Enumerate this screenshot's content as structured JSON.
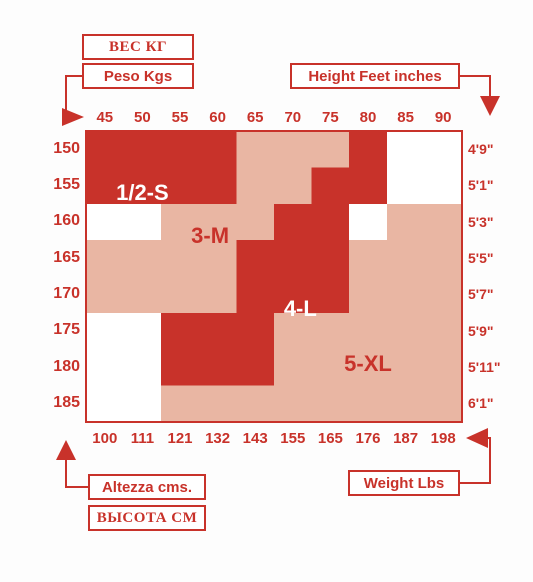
{
  "chart_data": {
    "type": "heatmap",
    "weight_kg_ticks": [
      "45",
      "50",
      "55",
      "60",
      "65",
      "70",
      "75",
      "80",
      "85",
      "90"
    ],
    "weight_lbs_ticks": [
      "100",
      "111",
      "121",
      "132",
      "143",
      "155",
      "165",
      "176",
      "187",
      "198"
    ],
    "height_cm_ticks": [
      "150",
      "155",
      "160",
      "165",
      "170",
      "175",
      "180",
      "185"
    ],
    "height_ftin_ticks": [
      "4'9\"",
      "5'1\"",
      "5'3\"",
      "5'5\"",
      "5'7\"",
      "5'9\"",
      "5'11\"",
      "6'1\""
    ],
    "x_range_kg": [
      42.5,
      92.5
    ],
    "y_range_cm": [
      147.5,
      187.5
    ],
    "regions": [
      {
        "label": "1/2-S",
        "color": "#c8322a",
        "label_color": "#ffffff",
        "cells": [
          [
            42.5,
            62.5,
            147.5,
            157.5
          ]
        ]
      },
      {
        "label": "3-M",
        "color": "#e9b6a3",
        "label_color": "#c8322a",
        "cells": [
          [
            62.5,
            77.5,
            147.5,
            152.5
          ],
          [
            62.5,
            72.5,
            152.5,
            157.5
          ],
          [
            52.5,
            67.5,
            157.5,
            162.5
          ],
          [
            42.5,
            67.5,
            162.5,
            167.5
          ],
          [
            42.5,
            62.5,
            167.5,
            172.5
          ]
        ]
      },
      {
        "label": "4-L",
        "color": "#c8322a",
        "label_color": "#ffffff",
        "cells": [
          [
            77.5,
            82.5,
            147.5,
            152.5
          ],
          [
            72.5,
            82.5,
            152.5,
            157.5
          ],
          [
            67.5,
            77.5,
            157.5,
            162.5
          ],
          [
            62.5,
            77.5,
            162.5,
            167.5
          ],
          [
            62.5,
            77.5,
            167.5,
            172.5
          ],
          [
            52.5,
            67.5,
            172.5,
            177.5
          ],
          [
            52.5,
            67.5,
            177.5,
            182.5
          ]
        ]
      },
      {
        "label": "5-XL",
        "color": "#e9b6a3",
        "label_color": "#c8322a",
        "cells": [
          [
            82.5,
            92.5,
            157.5,
            162.5
          ],
          [
            77.5,
            92.5,
            162.5,
            167.5
          ],
          [
            77.5,
            92.5,
            167.5,
            172.5
          ],
          [
            67.5,
            92.5,
            172.5,
            177.5
          ],
          [
            67.5,
            92.5,
            177.5,
            182.5
          ],
          [
            52.5,
            92.5,
            182.5,
            187.5
          ]
        ]
      }
    ],
    "size_label_positions": [
      {
        "label": "1/2-S",
        "kg": 50,
        "cm": 156
      },
      {
        "label": "3-M",
        "kg": 59,
        "cm": 162
      },
      {
        "label": "4-L",
        "kg": 71,
        "cm": 172
      },
      {
        "label": "5-XL",
        "kg": 80,
        "cm": 179.5
      }
    ]
  },
  "labels": {
    "weight_kg_ru": "ВЕС КГ",
    "weight_kg": "Peso Kgs",
    "height_ft": "Height Feet inches",
    "height_cm": "Altezza cms.",
    "height_cm_ru": "ВЫСОТА СМ",
    "weight_lbs": "Weight Lbs"
  },
  "colors": {
    "accent": "#c8322a",
    "light": "#e9b6a3",
    "empty": "#ffffff"
  }
}
